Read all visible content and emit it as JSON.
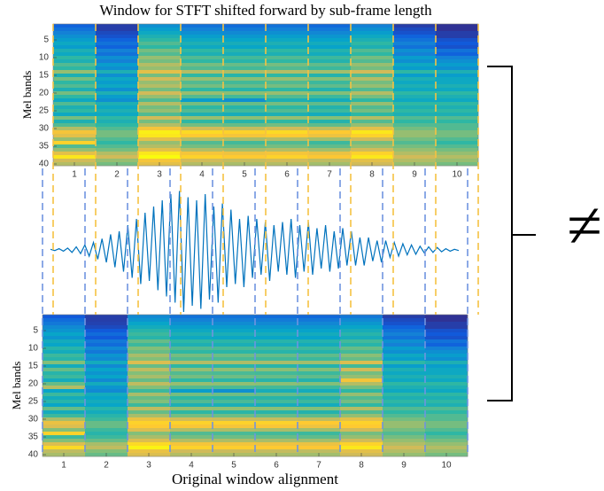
{
  "chart_data": [
    {
      "type": "heatmap",
      "title": "Window for STFT shifted forward by sub-frame length",
      "ylabel": "Mel bands",
      "xlim": [
        0.5,
        10.5
      ],
      "ylim": [
        0.5,
        40.5
      ],
      "xticks": [
        1,
        2,
        3,
        4,
        5,
        6,
        7,
        8,
        9,
        10
      ],
      "yticks": [
        5,
        10,
        15,
        20,
        25,
        30,
        35,
        40
      ],
      "clim": [
        0,
        1
      ],
      "colormap": [
        "#352a87",
        "#0f5cdd",
        "#1481d6",
        "#06a4ca",
        "#2eb7a4",
        "#87bf77",
        "#d1bb59",
        "#fec832",
        "#f9fb0e"
      ],
      "values": [
        [
          0.15,
          0.05,
          0.3,
          0.2,
          0.18,
          0.2,
          0.17,
          0.25,
          0.05,
          0.02
        ],
        [
          0.2,
          0.05,
          0.35,
          0.25,
          0.23,
          0.25,
          0.22,
          0.3,
          0.08,
          0.02
        ],
        [
          0.25,
          0.08,
          0.4,
          0.3,
          0.28,
          0.3,
          0.27,
          0.35,
          0.1,
          0.05
        ],
        [
          0.3,
          0.1,
          0.45,
          0.35,
          0.33,
          0.35,
          0.32,
          0.4,
          0.15,
          0.05
        ],
        [
          0.35,
          0.15,
          0.5,
          0.4,
          0.38,
          0.4,
          0.37,
          0.45,
          0.2,
          0.1
        ],
        [
          0.4,
          0.2,
          0.55,
          0.45,
          0.43,
          0.45,
          0.42,
          0.5,
          0.25,
          0.12
        ],
        [
          0.35,
          0.15,
          0.5,
          0.4,
          0.38,
          0.4,
          0.37,
          0.45,
          0.2,
          0.1
        ],
        [
          0.45,
          0.25,
          0.6,
          0.5,
          0.48,
          0.5,
          0.47,
          0.55,
          0.3,
          0.2
        ],
        [
          0.4,
          0.2,
          0.55,
          0.45,
          0.43,
          0.45,
          0.42,
          0.5,
          0.25,
          0.15
        ],
        [
          0.5,
          0.3,
          0.65,
          0.55,
          0.53,
          0.55,
          0.52,
          0.6,
          0.35,
          0.25
        ],
        [
          0.45,
          0.25,
          0.6,
          0.5,
          0.48,
          0.5,
          0.47,
          0.55,
          0.3,
          0.3
        ],
        [
          0.55,
          0.35,
          0.7,
          0.6,
          0.58,
          0.6,
          0.57,
          0.65,
          0.4,
          0.35
        ],
        [
          0.5,
          0.3,
          0.65,
          0.55,
          0.53,
          0.55,
          0.52,
          0.6,
          0.35,
          0.3
        ],
        [
          0.65,
          0.45,
          0.8,
          0.7,
          0.68,
          0.7,
          0.67,
          0.75,
          0.5,
          0.45
        ],
        [
          0.45,
          0.3,
          0.6,
          0.5,
          0.48,
          0.5,
          0.47,
          0.55,
          0.35,
          0.35
        ],
        [
          0.6,
          0.4,
          0.75,
          0.65,
          0.63,
          0.65,
          0.62,
          0.7,
          0.45,
          0.4
        ],
        [
          0.5,
          0.35,
          0.65,
          0.55,
          0.53,
          0.55,
          0.52,
          0.6,
          0.4,
          0.4
        ],
        [
          0.55,
          0.4,
          0.7,
          0.6,
          0.58,
          0.6,
          0.57,
          0.65,
          0.45,
          0.45
        ],
        [
          0.45,
          0.3,
          0.6,
          0.5,
          0.48,
          0.5,
          0.47,
          0.55,
          0.4,
          0.4
        ],
        [
          0.6,
          0.45,
          0.75,
          0.65,
          0.63,
          0.65,
          0.62,
          0.7,
          0.5,
          0.5
        ],
        [
          0.5,
          0.35,
          0.65,
          0.55,
          0.53,
          0.55,
          0.52,
          0.6,
          0.45,
          0.45
        ],
        [
          0.4,
          0.3,
          0.55,
          0.35,
          0.3,
          0.45,
          0.42,
          0.5,
          0.4,
          0.4
        ],
        [
          0.55,
          0.45,
          0.7,
          0.6,
          0.58,
          0.6,
          0.57,
          0.65,
          0.5,
          0.5
        ],
        [
          0.45,
          0.4,
          0.6,
          0.5,
          0.48,
          0.5,
          0.47,
          0.55,
          0.45,
          0.45
        ],
        [
          0.5,
          0.45,
          0.65,
          0.55,
          0.53,
          0.55,
          0.52,
          0.6,
          0.5,
          0.5
        ],
        [
          0.4,
          0.4,
          0.55,
          0.45,
          0.43,
          0.45,
          0.42,
          0.5,
          0.45,
          0.45
        ],
        [
          0.6,
          0.5,
          0.75,
          0.65,
          0.63,
          0.65,
          0.62,
          0.7,
          0.55,
          0.55
        ],
        [
          0.45,
          0.45,
          0.6,
          0.5,
          0.48,
          0.5,
          0.47,
          0.55,
          0.5,
          0.5
        ],
        [
          0.55,
          0.5,
          0.7,
          0.6,
          0.58,
          0.6,
          0.57,
          0.65,
          0.55,
          0.55
        ],
        [
          0.7,
          0.55,
          0.85,
          0.75,
          0.73,
          0.75,
          0.72,
          0.8,
          0.6,
          0.55
        ],
        [
          0.85,
          0.6,
          0.97,
          0.92,
          0.9,
          0.92,
          0.88,
          0.95,
          0.65,
          0.6
        ],
        [
          0.8,
          0.6,
          0.95,
          0.88,
          0.85,
          0.88,
          0.83,
          0.9,
          0.65,
          0.6
        ],
        [
          0.65,
          0.55,
          0.8,
          0.7,
          0.68,
          0.7,
          0.67,
          0.75,
          0.6,
          0.55
        ],
        [
          0.9,
          0.5,
          0.65,
          0.55,
          0.53,
          0.55,
          0.52,
          0.6,
          0.55,
          0.5
        ],
        [
          0.55,
          0.55,
          0.7,
          0.6,
          0.58,
          0.6,
          0.57,
          0.65,
          0.6,
          0.55
        ],
        [
          0.65,
          0.6,
          0.8,
          0.7,
          0.68,
          0.7,
          0.67,
          0.75,
          0.65,
          0.6
        ],
        [
          0.8,
          0.7,
          0.95,
          0.85,
          0.83,
          0.85,
          0.82,
          0.9,
          0.7,
          0.65
        ],
        [
          0.95,
          0.75,
          1,
          0.9,
          0.88,
          0.9,
          0.87,
          0.95,
          0.75,
          0.7
        ],
        [
          0.75,
          0.65,
          0.85,
          0.75,
          0.73,
          0.75,
          0.72,
          0.8,
          0.7,
          0.65
        ],
        [
          0.7,
          0.6,
          0.8,
          0.7,
          0.68,
          0.7,
          0.67,
          0.75,
          0.65,
          0.6
        ]
      ]
    },
    {
      "type": "line",
      "color": "#0072bd",
      "ylim": [
        -1,
        1
      ],
      "annotation": "≠",
      "values": [
        0.01,
        -0.01,
        0.02,
        -0.02,
        0.03,
        -0.04,
        0.05,
        -0.06,
        0.08,
        -0.1,
        0.12,
        -0.15,
        0.18,
        -0.2,
        0.25,
        -0.28,
        0.3,
        -0.35,
        0.4,
        -0.45,
        0.5,
        -0.55,
        0.6,
        -0.5,
        0.7,
        -0.65,
        0.8,
        -0.75,
        0.9,
        -0.85,
        0.95,
        -1,
        0.85,
        -0.9,
        0.8,
        -0.95,
        0.9,
        -0.8,
        0.7,
        -0.85,
        0.75,
        -0.6,
        0.65,
        -0.55,
        0.5,
        -0.6,
        0.55,
        -0.45,
        0.5,
        -0.4,
        0.45,
        -0.5,
        0.4,
        -0.35,
        0.45,
        -0.4,
        0.5,
        -0.45,
        0.4,
        -0.35,
        0.45,
        -0.4,
        0.35,
        -0.3,
        0.4,
        -0.35,
        0.3,
        -0.3,
        0.35,
        -0.25,
        0.3,
        -0.25,
        0.2,
        -0.25,
        0.2,
        -0.18,
        0.15,
        -0.2,
        0.15,
        -0.12,
        0.12,
        -0.1,
        0.1,
        -0.08,
        0.08,
        -0.07,
        0.06,
        -0.05,
        0.05,
        -0.04,
        0.04,
        -0.03,
        0.02,
        -0.02,
        0.01,
        -0.01
      ]
    },
    {
      "type": "heatmap",
      "xlabel": "Original window alignment",
      "ylabel": "Mel bands",
      "xlim": [
        0.5,
        10.5
      ],
      "ylim": [
        0.5,
        40.5
      ],
      "xticks": [
        1,
        2,
        3,
        4,
        5,
        6,
        7,
        8,
        9,
        10
      ],
      "yticks": [
        5,
        10,
        15,
        20,
        25,
        30,
        35,
        40
      ],
      "clim": [
        0,
        1
      ],
      "colormap": [
        "#352a87",
        "#0f5cdd",
        "#1481d6",
        "#06a4ca",
        "#2eb7a4",
        "#87bf77",
        "#d1bb59",
        "#fec832",
        "#f9fb0e"
      ],
      "values": [
        [
          0.12,
          0.05,
          0.28,
          0.2,
          0.2,
          0.18,
          0.17,
          0.22,
          0.05,
          0.02
        ],
        [
          0.18,
          0.05,
          0.32,
          0.25,
          0.24,
          0.23,
          0.22,
          0.28,
          0.08,
          0.02
        ],
        [
          0.22,
          0.06,
          0.38,
          0.3,
          0.29,
          0.28,
          0.27,
          0.33,
          0.1,
          0.05
        ],
        [
          0.28,
          0.08,
          0.42,
          0.35,
          0.34,
          0.33,
          0.32,
          0.38,
          0.15,
          0.05
        ],
        [
          0.32,
          0.12,
          0.48,
          0.4,
          0.39,
          0.38,
          0.37,
          0.43,
          0.2,
          0.1
        ],
        [
          0.38,
          0.18,
          0.52,
          0.45,
          0.44,
          0.43,
          0.42,
          0.48,
          0.25,
          0.12
        ],
        [
          0.32,
          0.12,
          0.48,
          0.4,
          0.39,
          0.38,
          0.37,
          0.43,
          0.2,
          0.1
        ],
        [
          0.42,
          0.22,
          0.58,
          0.5,
          0.49,
          0.48,
          0.47,
          0.53,
          0.3,
          0.2
        ],
        [
          0.38,
          0.18,
          0.52,
          0.45,
          0.44,
          0.43,
          0.42,
          0.48,
          0.25,
          0.15
        ],
        [
          0.48,
          0.28,
          0.62,
          0.55,
          0.54,
          0.53,
          0.52,
          0.58,
          0.35,
          0.25
        ],
        [
          0.42,
          0.22,
          0.58,
          0.5,
          0.49,
          0.48,
          0.47,
          0.53,
          0.3,
          0.3
        ],
        [
          0.52,
          0.32,
          0.68,
          0.6,
          0.59,
          0.58,
          0.57,
          0.63,
          0.4,
          0.35
        ],
        [
          0.48,
          0.28,
          0.62,
          0.55,
          0.54,
          0.53,
          0.52,
          0.58,
          0.35,
          0.3
        ],
        [
          0.62,
          0.42,
          0.78,
          0.7,
          0.69,
          0.68,
          0.67,
          0.78,
          0.5,
          0.45
        ],
        [
          0.42,
          0.28,
          0.58,
          0.5,
          0.49,
          0.48,
          0.47,
          0.53,
          0.35,
          0.35
        ],
        [
          0.58,
          0.38,
          0.72,
          0.65,
          0.64,
          0.63,
          0.62,
          0.75,
          0.45,
          0.4
        ],
        [
          0.48,
          0.32,
          0.62,
          0.55,
          0.54,
          0.53,
          0.52,
          0.6,
          0.4,
          0.4
        ],
        [
          0.52,
          0.38,
          0.68,
          0.6,
          0.59,
          0.58,
          0.57,
          0.65,
          0.45,
          0.45
        ],
        [
          0.42,
          0.28,
          0.58,
          0.5,
          0.49,
          0.48,
          0.47,
          0.85,
          0.4,
          0.4
        ],
        [
          0.58,
          0.42,
          0.72,
          0.65,
          0.64,
          0.63,
          0.62,
          0.7,
          0.5,
          0.5
        ],
        [
          0.7,
          0.32,
          0.62,
          0.55,
          0.54,
          0.53,
          0.52,
          0.6,
          0.45,
          0.45
        ],
        [
          0.38,
          0.28,
          0.52,
          0.35,
          0.3,
          0.43,
          0.42,
          0.5,
          0.4,
          0.4
        ],
        [
          0.52,
          0.42,
          0.68,
          0.6,
          0.59,
          0.58,
          0.57,
          0.65,
          0.5,
          0.5
        ],
        [
          0.42,
          0.38,
          0.58,
          0.5,
          0.49,
          0.48,
          0.47,
          0.55,
          0.45,
          0.45
        ],
        [
          0.48,
          0.42,
          0.62,
          0.55,
          0.54,
          0.53,
          0.52,
          0.6,
          0.5,
          0.5
        ],
        [
          0.38,
          0.38,
          0.52,
          0.45,
          0.44,
          0.43,
          0.42,
          0.5,
          0.45,
          0.45
        ],
        [
          0.58,
          0.48,
          0.72,
          0.65,
          0.64,
          0.63,
          0.62,
          0.7,
          0.55,
          0.55
        ],
        [
          0.42,
          0.42,
          0.58,
          0.5,
          0.49,
          0.48,
          0.47,
          0.55,
          0.5,
          0.5
        ],
        [
          0.52,
          0.48,
          0.68,
          0.6,
          0.59,
          0.58,
          0.57,
          0.65,
          0.55,
          0.55
        ],
        [
          0.68,
          0.52,
          0.82,
          0.75,
          0.74,
          0.73,
          0.72,
          0.8,
          0.6,
          0.55
        ],
        [
          0.82,
          0.58,
          0.9,
          0.9,
          0.9,
          0.9,
          0.88,
          0.9,
          0.65,
          0.6
        ],
        [
          0.78,
          0.58,
          0.88,
          0.86,
          0.85,
          0.86,
          0.83,
          0.88,
          0.65,
          0.6
        ],
        [
          0.62,
          0.52,
          0.78,
          0.7,
          0.69,
          0.68,
          0.67,
          0.75,
          0.6,
          0.55
        ],
        [
          0.9,
          0.48,
          0.62,
          0.55,
          0.54,
          0.53,
          0.52,
          0.6,
          0.55,
          0.5
        ],
        [
          0.52,
          0.52,
          0.68,
          0.6,
          0.59,
          0.58,
          0.57,
          0.65,
          0.6,
          0.55
        ],
        [
          0.62,
          0.58,
          0.78,
          0.7,
          0.69,
          0.68,
          0.67,
          0.75,
          0.65,
          0.6
        ],
        [
          0.78,
          0.68,
          0.92,
          0.85,
          0.84,
          0.83,
          0.82,
          0.9,
          0.7,
          0.65
        ],
        [
          0.92,
          0.72,
          0.98,
          0.9,
          0.89,
          0.88,
          0.87,
          0.95,
          0.75,
          0.7
        ],
        [
          0.72,
          0.62,
          0.82,
          0.75,
          0.74,
          0.73,
          0.72,
          0.8,
          0.7,
          0.65
        ],
        [
          0.68,
          0.58,
          0.78,
          0.7,
          0.69,
          0.68,
          0.67,
          0.75,
          0.65,
          0.6
        ]
      ]
    }
  ]
}
